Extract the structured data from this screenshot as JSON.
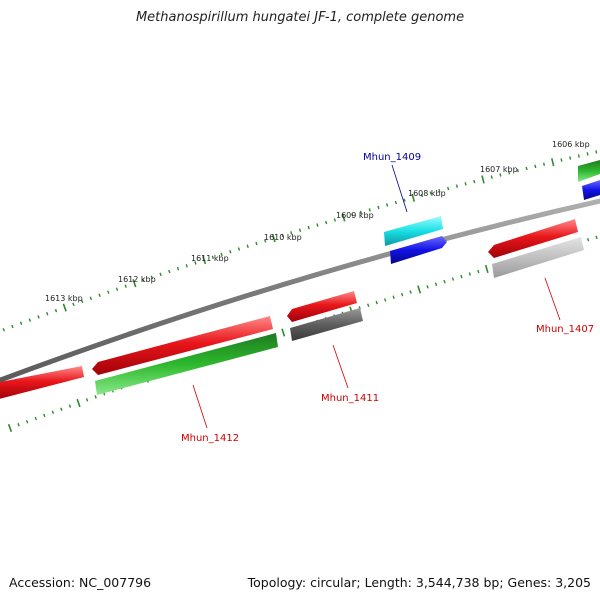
{
  "title": "Methanospirillum hungatei JF-1, complete genome",
  "footer": {
    "accession": "Accession: NC_007796",
    "summary": "Topology: circular; Length: 3,544,738 bp; Genes: 3,205"
  },
  "colors": {
    "backbone": "#7a7a7a",
    "ticks": "#2e8b2e",
    "cds_red": "#e8171b",
    "cds_green": "#2db82d",
    "cds_cyan": "#19e0e6",
    "cds_blue": "#1212e6",
    "cds_darkgray": "#5e5e5e",
    "cds_lightgray": "#c0c0c0",
    "label_red": "#cc0000",
    "label_blue": "#000099"
  },
  "scale_labels": [
    "1613 kbp",
    "1612 kbp",
    "1611 kbp",
    "1610 kbp",
    "1609 kbp",
    "1608 kbp",
    "1607 kbp",
    "1606 kbp"
  ],
  "gene_labels": [
    "Mhun_1409",
    "Mhun_1407",
    "Mhun_1411",
    "Mhun_1412"
  ]
}
